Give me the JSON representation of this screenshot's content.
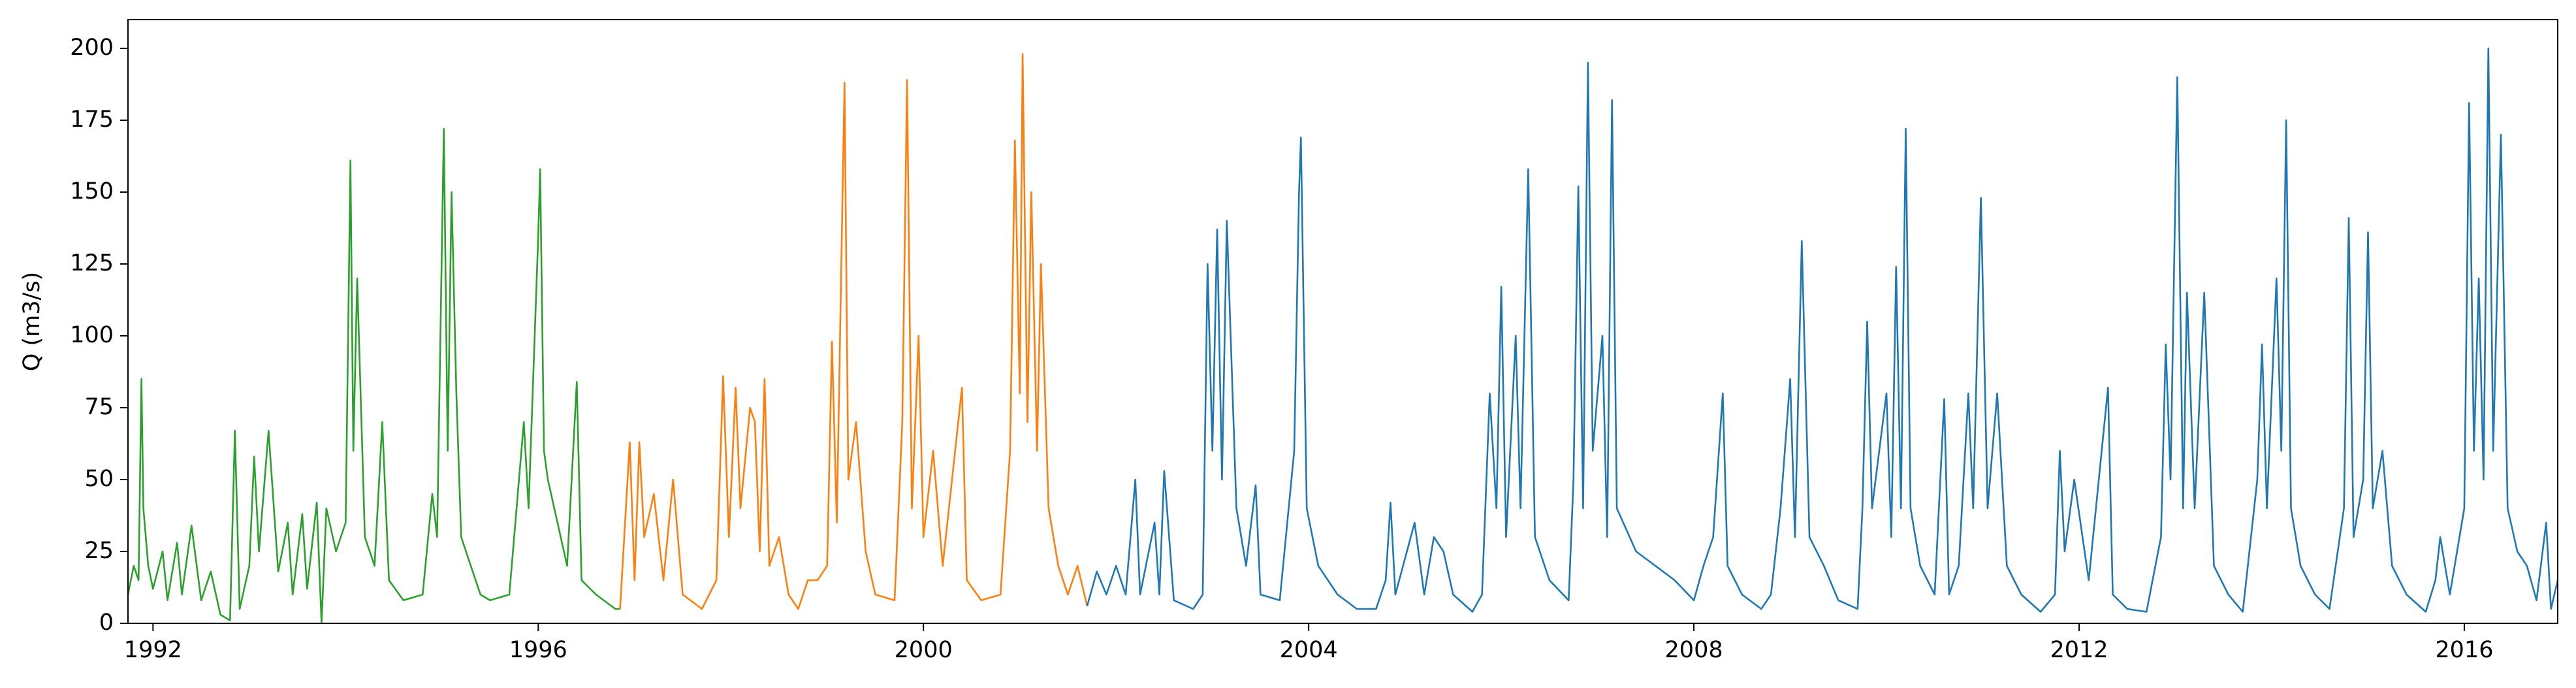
{
  "chart_data": {
    "type": "line",
    "ylabel": "Q (m3/s)",
    "xlim": [
      1991.74,
      2016.97
    ],
    "xticks": [
      1992,
      1996,
      2000,
      2004,
      2008,
      2012,
      2016
    ],
    "ylim": [
      0,
      210
    ],
    "yticks": [
      0,
      25,
      50,
      75,
      100,
      125,
      150,
      175,
      200
    ],
    "series": [
      {
        "color": "#2ca02c",
        "x": [
          1991.74,
          1991.8,
          1991.85,
          1991.88,
          1991.9,
          1991.95,
          1992.0,
          1992.1,
          1992.15,
          1992.25,
          1992.3,
          1992.4,
          1992.5,
          1992.6,
          1992.7,
          1992.8,
          1992.85,
          1992.9,
          1993.0,
          1993.05,
          1993.1,
          1993.2,
          1993.3,
          1993.4,
          1993.45,
          1993.55,
          1993.6,
          1993.7,
          1993.75,
          1993.8,
          1993.9,
          1994.0,
          1994.05,
          1994.08,
          1994.12,
          1994.2,
          1994.3,
          1994.38,
          1994.45,
          1994.6,
          1994.8,
          1994.9,
          1994.95,
          1995.02,
          1995.06,
          1995.1,
          1995.15,
          1995.2,
          1995.3,
          1995.4,
          1995.5,
          1995.7,
          1995.85,
          1995.9,
          1996.0,
          1996.02,
          1996.06,
          1996.1,
          1996.2,
          1996.3,
          1996.4,
          1996.45,
          1996.6,
          1996.8,
          1996.85
        ],
        "values": [
          10,
          20,
          15,
          85,
          40,
          20,
          12,
          25,
          8,
          28,
          10,
          34,
          8,
          18,
          3,
          1,
          67,
          5,
          20,
          58,
          25,
          67,
          18,
          35,
          10,
          38,
          12,
          42,
          0,
          40,
          25,
          35,
          161,
          60,
          120,
          30,
          20,
          70,
          15,
          8,
          10,
          45,
          30,
          172,
          60,
          150,
          80,
          30,
          20,
          10,
          8,
          10,
          70,
          40,
          135,
          158,
          60,
          50,
          35,
          20,
          84,
          15,
          10,
          5,
          5
        ]
      },
      {
        "color": "#ff7f0e",
        "x": [
          1996.85,
          1996.95,
          1997.0,
          1997.05,
          1997.1,
          1997.2,
          1997.3,
          1997.4,
          1997.5,
          1997.7,
          1997.85,
          1997.92,
          1997.98,
          1998.05,
          1998.1,
          1998.2,
          1998.25,
          1998.3,
          1998.35,
          1998.4,
          1998.5,
          1998.6,
          1998.7,
          1998.8,
          1998.9,
          1999.0,
          1999.05,
          1999.1,
          1999.18,
          1999.22,
          1999.3,
          1999.4,
          1999.5,
          1999.7,
          1999.78,
          1999.83,
          1999.88,
          1999.95,
          2000.0,
          2000.1,
          2000.2,
          2000.4,
          2000.45,
          2000.6,
          2000.8,
          2000.9,
          2000.95,
          2001.0,
          2001.03,
          2001.08,
          2001.12,
          2001.18,
          2001.22,
          2001.3,
          2001.4,
          2001.5,
          2001.6,
          2001.7
        ],
        "values": [
          5,
          63,
          15,
          63,
          30,
          45,
          15,
          50,
          10,
          5,
          15,
          86,
          30,
          82,
          40,
          75,
          70,
          25,
          85,
          20,
          30,
          10,
          5,
          15,
          15,
          20,
          98,
          35,
          188,
          50,
          70,
          25,
          10,
          8,
          70,
          189,
          40,
          100,
          30,
          60,
          20,
          82,
          15,
          8,
          10,
          60,
          168,
          80,
          198,
          70,
          150,
          60,
          125,
          40,
          20,
          10,
          20,
          6
        ]
      },
      {
        "color": "#1f77b4",
        "x": [
          2001.7,
          2001.8,
          2001.9,
          2002.0,
          2002.1,
          2002.2,
          2002.25,
          2002.4,
          2002.45,
          2002.5,
          2002.6,
          2002.8,
          2002.9,
          2002.95,
          2003.0,
          2003.05,
          2003.1,
          2003.15,
          2003.25,
          2003.35,
          2003.45,
          2003.5,
          2003.7,
          2003.85,
          2003.9,
          2003.92,
          2003.98,
          2004.1,
          2004.3,
          2004.5,
          2004.7,
          2004.8,
          2004.85,
          2004.9,
          2005.1,
          2005.2,
          2005.3,
          2005.4,
          2005.5,
          2005.7,
          2005.8,
          2005.88,
          2005.95,
          2006.0,
          2006.05,
          2006.15,
          2006.2,
          2006.28,
          2006.35,
          2006.5,
          2006.7,
          2006.75,
          2006.8,
          2006.85,
          2006.9,
          2006.95,
          2007.05,
          2007.1,
          2007.15,
          2007.2,
          2007.4,
          2007.6,
          2007.8,
          2008.0,
          2008.1,
          2008.2,
          2008.3,
          2008.35,
          2008.5,
          2008.7,
          2008.8,
          2008.9,
          2009.0,
          2009.05,
          2009.12,
          2009.2,
          2009.35,
          2009.5,
          2009.7,
          2009.75,
          2009.8,
          2009.85,
          2010.0,
          2010.05,
          2010.1,
          2010.15,
          2010.2,
          2010.25,
          2010.35,
          2010.5,
          2010.6,
          2010.65,
          2010.75,
          2010.85,
          2010.9,
          2010.98,
          2011.05,
          2011.15,
          2011.25,
          2011.4,
          2011.6,
          2011.75,
          2011.8,
          2011.85,
          2011.95,
          2012.1,
          2012.3,
          2012.35,
          2012.5,
          2012.7,
          2012.85,
          2012.9,
          2012.95,
          2013.02,
          2013.08,
          2013.12,
          2013.2,
          2013.3,
          2013.4,
          2013.55,
          2013.7,
          2013.85,
          2013.9,
          2013.95,
          2014.05,
          2014.1,
          2014.15,
          2014.2,
          2014.3,
          2014.45,
          2014.6,
          2014.75,
          2014.8,
          2014.85,
          2014.95,
          2015.0,
          2015.05,
          2015.15,
          2015.25,
          2015.4,
          2015.6,
          2015.7,
          2015.75,
          2015.85,
          2016.0,
          2016.05,
          2016.1,
          2016.15,
          2016.2,
          2016.25,
          2016.3,
          2016.38,
          2016.45,
          2016.55,
          2016.65,
          2016.75,
          2016.85,
          2016.9,
          2016.97
        ],
        "values": [
          6,
          18,
          10,
          20,
          10,
          50,
          10,
          35,
          10,
          53,
          8,
          5,
          10,
          125,
          60,
          137,
          50,
          140,
          40,
          20,
          48,
          10,
          8,
          60,
          150,
          169,
          40,
          20,
          10,
          5,
          5,
          15,
          42,
          10,
          35,
          10,
          30,
          25,
          10,
          4,
          10,
          80,
          40,
          117,
          30,
          100,
          40,
          158,
          30,
          15,
          8,
          50,
          152,
          40,
          195,
          60,
          100,
          30,
          182,
          40,
          25,
          20,
          15,
          8,
          20,
          30,
          80,
          20,
          10,
          5,
          10,
          40,
          85,
          30,
          133,
          30,
          20,
          8,
          5,
          40,
          105,
          40,
          80,
          30,
          124,
          40,
          172,
          40,
          20,
          10,
          78,
          10,
          20,
          80,
          40,
          148,
          40,
          80,
          20,
          10,
          4,
          10,
          60,
          25,
          50,
          15,
          82,
          10,
          5,
          4,
          30,
          97,
          50,
          190,
          40,
          115,
          40,
          115,
          20,
          10,
          4,
          50,
          97,
          40,
          120,
          60,
          175,
          40,
          20,
          10,
          5,
          40,
          141,
          30,
          50,
          136,
          40,
          60,
          20,
          10,
          4,
          15,
          30,
          10,
          40,
          181,
          60,
          120,
          50,
          200,
          60,
          170,
          40,
          25,
          20,
          8,
          35,
          5,
          15
        ]
      }
    ]
  }
}
